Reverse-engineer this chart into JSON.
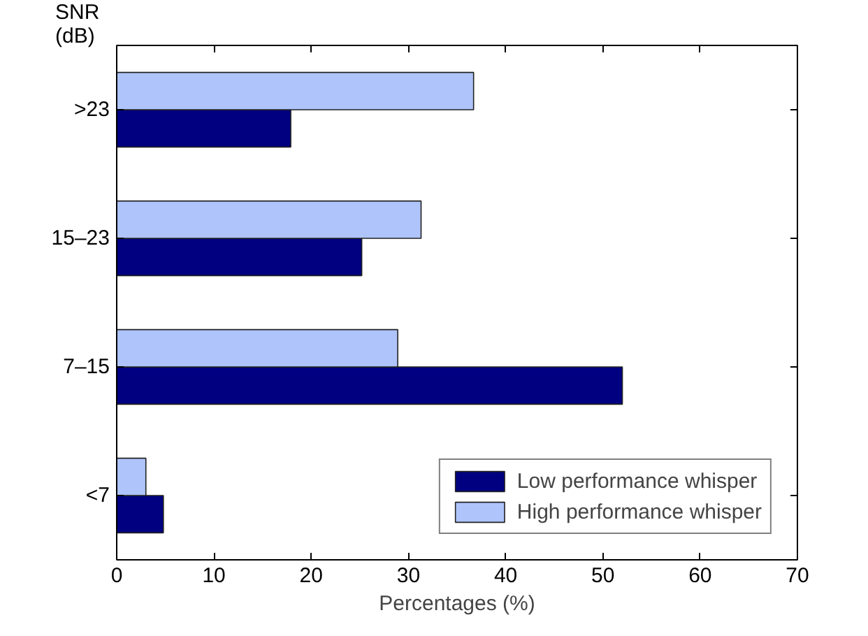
{
  "chart_data": {
    "type": "bar",
    "orientation": "horizontal",
    "xlabel": "Percentages (%)",
    "ylabel": "SNR (dB)",
    "categories": [
      ">23",
      "15–23",
      "7–15",
      "<7"
    ],
    "series": [
      {
        "name": "Low performance whisper",
        "color": "#000080",
        "values": [
          17.9,
          25.2,
          52.0,
          4.8
        ]
      },
      {
        "name": "High performance whisper",
        "color": "#aec4fa",
        "values": [
          36.7,
          31.3,
          28.9,
          3.0
        ]
      }
    ],
    "xlim": [
      0,
      70
    ],
    "xticks": [
      0,
      10,
      20,
      30,
      40,
      50,
      60,
      70
    ],
    "grid": false,
    "legend": "bottom right"
  }
}
